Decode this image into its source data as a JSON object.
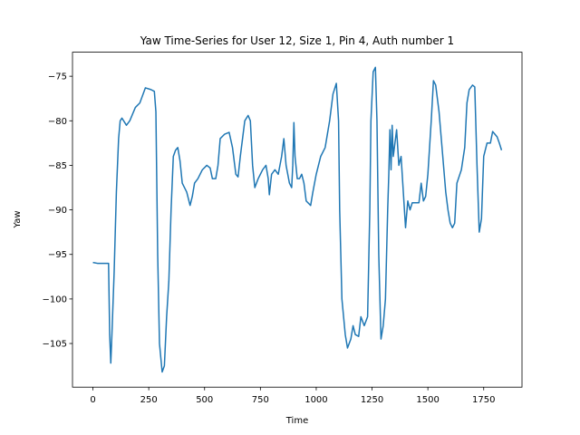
{
  "chart_data": {
    "type": "line",
    "title": "Yaw Time-Series for User 12, Size 1, Pin 4, Auth number 1",
    "xlabel": "Time",
    "ylabel": "Yaw",
    "color": "#1f77b4",
    "x": [
      0,
      20,
      40,
      60,
      70,
      75,
      80,
      85,
      95,
      105,
      115,
      122,
      130,
      150,
      165,
      190,
      210,
      235,
      260,
      275,
      282,
      290,
      298,
      310,
      320,
      330,
      340,
      350,
      360,
      370,
      380,
      390,
      400,
      420,
      435,
      445,
      455,
      470,
      490,
      510,
      525,
      535,
      550,
      560,
      570,
      590,
      610,
      625,
      640,
      650,
      660,
      680,
      695,
      705,
      715,
      725,
      740,
      750,
      760,
      775,
      785,
      790,
      800,
      815,
      830,
      845,
      855,
      865,
      880,
      890,
      895,
      900,
      905,
      915,
      925,
      935,
      945,
      955,
      975,
      985,
      1000,
      1020,
      1040,
      1060,
      1075,
      1090,
      1100,
      1105,
      1115,
      1130,
      1140,
      1155,
      1165,
      1175,
      1190,
      1200,
      1215,
      1230,
      1240,
      1245,
      1255,
      1265,
      1272,
      1280,
      1290,
      1300,
      1310,
      1320,
      1325,
      1330,
      1335,
      1340,
      1345,
      1355,
      1360,
      1370,
      1380,
      1385,
      1395,
      1400,
      1410,
      1420,
      1430,
      1460,
      1470,
      1480,
      1490,
      1500,
      1515,
      1525,
      1535,
      1550,
      1560,
      1570,
      1580,
      1590,
      1600,
      1610,
      1620,
      1630,
      1650,
      1665,
      1675,
      1685,
      1700,
      1710,
      1720,
      1730,
      1740,
      1750,
      1765,
      1780,
      1790,
      1810,
      1820,
      1830
    ],
    "values": [
      -95.9,
      -96,
      -96,
      -96,
      -96,
      -104,
      -107.2,
      -104,
      -97,
      -88,
      -82,
      -80,
      -79.7,
      -80.5,
      -80,
      -78.5,
      -78,
      -76.3,
      -76.5,
      -76.7,
      -79,
      -95,
      -105,
      -108.2,
      -107.5,
      -102,
      -98,
      -90,
      -84,
      -83.3,
      -83,
      -84.5,
      -87,
      -88,
      -89.5,
      -88.5,
      -87,
      -86.5,
      -85.5,
      -85,
      -85.3,
      -86.5,
      -86.5,
      -85,
      -82,
      -81.5,
      -81.3,
      -83,
      -86,
      -86.3,
      -84,
      -80,
      -79.4,
      -80,
      -85,
      -87.5,
      -86.5,
      -86,
      -85.5,
      -85,
      -86.5,
      -88.3,
      -86,
      -85.5,
      -86,
      -84,
      -82,
      -85,
      -87,
      -87.5,
      -85,
      -80.2,
      -84,
      -86.5,
      -86.5,
      -86,
      -87,
      -89,
      -89.5,
      -88,
      -86,
      -84,
      -83,
      -80,
      -77,
      -75.8,
      -80,
      -90,
      -100,
      -104,
      -105.5,
      -104.5,
      -103,
      -104,
      -104.2,
      -102,
      -103,
      -102,
      -90,
      -80,
      -74.5,
      -74,
      -80,
      -95,
      -104.5,
      -103,
      -100,
      -90,
      -86,
      -81,
      -85.5,
      -80.5,
      -84,
      -82,
      -81,
      -85,
      -84,
      -86,
      -90,
      -92,
      -89,
      -90,
      -89.2,
      -89.2,
      -87,
      -89,
      -88.5,
      -86,
      -80,
      -75.5,
      -76,
      -79,
      -82,
      -85,
      -88,
      -90,
      -91.5,
      -92,
      -91.5,
      -87,
      -85.5,
      -83,
      -78,
      -76.5,
      -76,
      -76.2,
      -85,
      -92.5,
      -91,
      -84,
      -82.5,
      -82.5,
      -81.2,
      -81.8,
      -82.5,
      -83.3
    ],
    "xlim": [
      -91.5,
      1921.5
    ],
    "ylim": [
      -109.9,
      -72.3
    ],
    "xticks": [
      0,
      250,
      500,
      750,
      1000,
      1250,
      1500,
      1750
    ],
    "yticks": [
      {
        "value": -105,
        "label": "−105"
      },
      {
        "value": -100,
        "label": "−100"
      },
      {
        "value": -95,
        "label": "−95"
      },
      {
        "value": -90,
        "label": "−90"
      },
      {
        "value": -85,
        "label": "−85"
      },
      {
        "value": -80,
        "label": "−80"
      },
      {
        "value": -75,
        "label": "−75"
      }
    ]
  }
}
